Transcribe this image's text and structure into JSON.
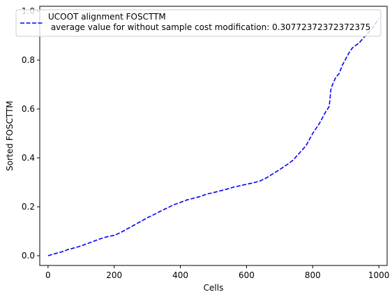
{
  "chart_data": {
    "type": "line",
    "xlabel": "Cells",
    "ylabel": "Sorted FOSCTTM",
    "xlim": [
      -25,
      1025
    ],
    "ylim": [
      -0.04,
      1.02
    ],
    "xticks": [
      0,
      200,
      400,
      600,
      800,
      1000
    ],
    "xtick_labels": [
      "0",
      "200",
      "400",
      "600",
      "800",
      "1000"
    ],
    "yticks": [
      0.0,
      0.2,
      0.4,
      0.6,
      0.8,
      1.0
    ],
    "ytick_labels": [
      "0.0",
      "0.2",
      "0.4",
      "0.6",
      "0.8",
      "1.0"
    ],
    "grid": false,
    "legend_position": "top",
    "series": [
      {
        "name": "UCOOT alignment FOSCTTM",
        "legend_line2": " average value for without sample cost modification: 0.30772372372372375",
        "color": "#0000ff",
        "line_style": "dashed",
        "x": [
          0,
          20,
          40,
          60,
          80,
          100,
          120,
          140,
          160,
          180,
          200,
          220,
          240,
          260,
          280,
          300,
          320,
          340,
          360,
          380,
          400,
          420,
          440,
          460,
          480,
          500,
          520,
          540,
          560,
          580,
          600,
          620,
          640,
          660,
          680,
          700,
          720,
          740,
          760,
          780,
          800,
          820,
          840,
          850,
          855,
          860,
          870,
          880,
          890,
          900,
          910,
          920,
          940,
          960,
          980,
          1000
        ],
        "y": [
          0.0,
          0.008,
          0.015,
          0.025,
          0.032,
          0.04,
          0.05,
          0.06,
          0.07,
          0.078,
          0.083,
          0.095,
          0.11,
          0.125,
          0.14,
          0.155,
          0.168,
          0.182,
          0.195,
          0.208,
          0.218,
          0.228,
          0.235,
          0.242,
          0.252,
          0.258,
          0.265,
          0.272,
          0.28,
          0.286,
          0.292,
          0.298,
          0.305,
          0.318,
          0.335,
          0.352,
          0.37,
          0.39,
          0.42,
          0.45,
          0.5,
          0.54,
          0.59,
          0.61,
          0.68,
          0.7,
          0.73,
          0.745,
          0.78,
          0.805,
          0.83,
          0.85,
          0.87,
          0.9,
          0.93,
          0.97
        ]
      }
    ]
  }
}
